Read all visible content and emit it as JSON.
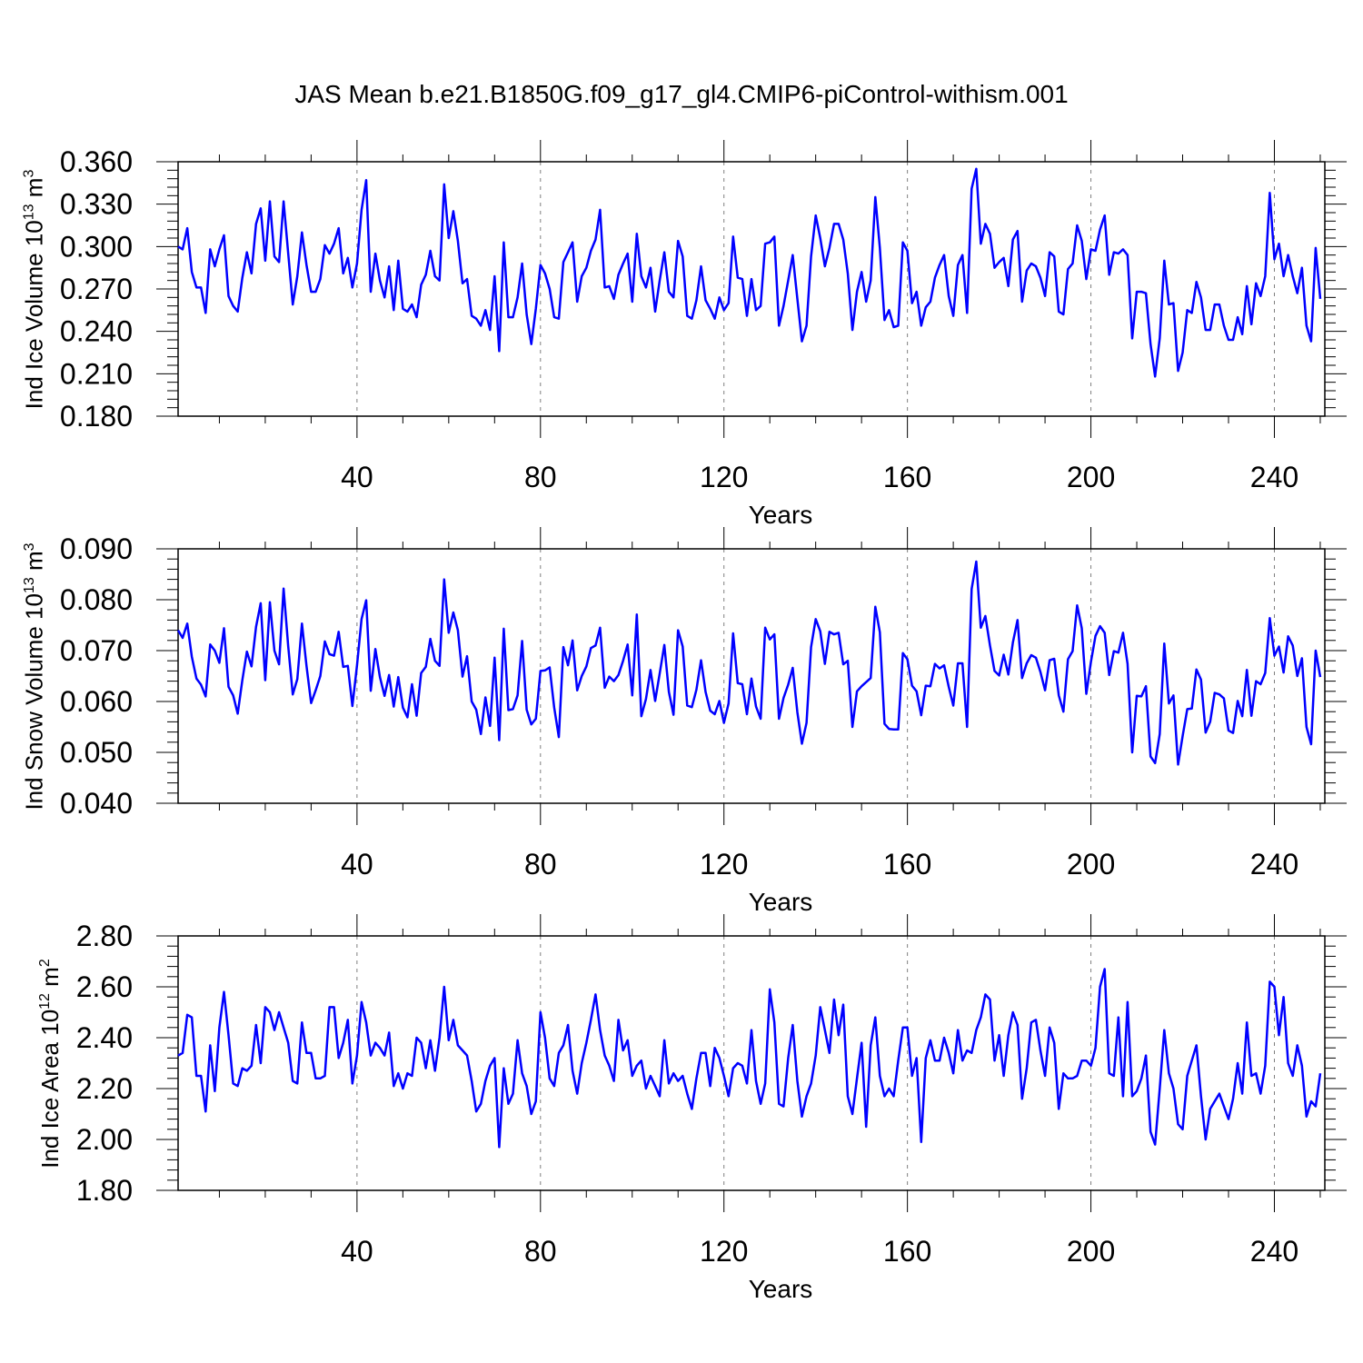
{
  "title": "JAS Mean b.e21.B1850G.f09_g17_gl4.CMIP6-piControl-withism.001",
  "colors": {
    "line": "#0000ff",
    "axis": "#000000",
    "grid": "#7f7f7f"
  },
  "chart_data": [
    {
      "type": "line",
      "ylabel": {
        "main": "Ind Ice Volume 10",
        "exp": "13",
        "unit": " m",
        "unit_exp": "3"
      },
      "xlabel": "Years",
      "xlim": [
        1,
        251
      ],
      "ylim": [
        0.18,
        0.36
      ],
      "xticks": [
        40,
        80,
        120,
        160,
        200,
        240
      ],
      "yticks": [
        0.18,
        0.21,
        0.24,
        0.27,
        0.3,
        0.33,
        0.36
      ],
      "ytick_labels": [
        "0.180",
        "0.210",
        "0.240",
        "0.270",
        "0.300",
        "0.330",
        "0.360"
      ],
      "grid": "dashed vertical at x ticks",
      "series": [
        {
          "x_start": 1,
          "values": [
            0.3,
            0.298,
            0.313,
            0.282,
            0.271,
            0.271,
            0.253,
            0.298,
            0.286,
            0.298,
            0.308,
            0.265,
            0.258,
            0.254,
            0.278,
            0.296,
            0.281,
            0.316,
            0.327,
            0.29,
            0.332,
            0.293,
            0.289,
            0.332,
            0.295,
            0.259,
            0.279,
            0.31,
            0.287,
            0.268,
            0.268,
            0.277,
            0.301,
            0.295,
            0.302,
            0.313,
            0.281,
            0.292,
            0.271,
            0.288,
            0.326,
            0.347,
            0.268,
            0.295,
            0.276,
            0.264,
            0.286,
            0.255,
            0.29,
            0.256,
            0.254,
            0.259,
            0.25,
            0.273,
            0.28,
            0.297,
            0.279,
            0.276,
            0.344,
            0.306,
            0.325,
            0.304,
            0.274,
            0.277,
            0.251,
            0.249,
            0.244,
            0.255,
            0.241,
            0.279,
            0.226,
            0.303,
            0.25,
            0.25,
            0.264,
            0.288,
            0.252,
            0.231,
            0.256,
            0.287,
            0.281,
            0.27,
            0.25,
            0.249,
            0.289,
            0.296,
            0.303,
            0.261,
            0.279,
            0.285,
            0.297,
            0.305,
            0.326,
            0.271,
            0.272,
            0.263,
            0.28,
            0.288,
            0.295,
            0.261,
            0.309,
            0.279,
            0.271,
            0.285,
            0.254,
            0.276,
            0.296,
            0.268,
            0.264,
            0.304,
            0.293,
            0.251,
            0.249,
            0.262,
            0.286,
            0.262,
            0.256,
            0.249,
            0.264,
            0.255,
            0.26,
            0.307,
            0.278,
            0.277,
            0.251,
            0.277,
            0.255,
            0.258,
            0.302,
            0.303,
            0.307,
            0.244,
            0.258,
            0.276,
            0.294,
            0.263,
            0.233,
            0.244,
            0.293,
            0.322,
            0.306,
            0.286,
            0.299,
            0.316,
            0.316,
            0.305,
            0.281,
            0.241,
            0.268,
            0.282,
            0.261,
            0.276,
            0.335,
            0.299,
            0.248,
            0.255,
            0.243,
            0.244,
            0.303,
            0.297,
            0.26,
            0.268,
            0.244,
            0.257,
            0.261,
            0.278,
            0.287,
            0.294,
            0.265,
            0.251,
            0.287,
            0.294,
            0.253,
            0.341,
            0.355,
            0.302,
            0.316,
            0.309,
            0.285,
            0.289,
            0.292,
            0.272,
            0.305,
            0.311,
            0.261,
            0.283,
            0.288,
            0.286,
            0.278,
            0.265,
            0.296,
            0.293,
            0.254,
            0.252,
            0.284,
            0.288,
            0.315,
            0.304,
            0.277,
            0.298,
            0.297,
            0.312,
            0.322,
            0.28,
            0.296,
            0.295,
            0.298,
            0.294,
            0.235,
            0.268,
            0.268,
            0.267,
            0.231,
            0.208,
            0.235,
            0.29,
            0.259,
            0.26,
            0.212,
            0.225,
            0.255,
            0.253,
            0.275,
            0.264,
            0.241,
            0.241,
            0.259,
            0.259,
            0.244,
            0.234,
            0.234,
            0.25,
            0.238,
            0.272,
            0.245,
            0.274,
            0.265,
            0.279,
            0.338,
            0.291,
            0.302,
            0.279,
            0.294,
            0.279,
            0.267,
            0.285,
            0.244,
            0.233,
            0.299,
            0.263
          ]
        }
      ]
    },
    {
      "type": "line",
      "ylabel": {
        "main": "Ind Snow Volume 10",
        "exp": "13",
        "unit": " m",
        "unit_exp": "3"
      },
      "xlabel": "Years",
      "xlim": [
        1,
        251
      ],
      "ylim": [
        0.04,
        0.09
      ],
      "xticks": [
        40,
        80,
        120,
        160,
        200,
        240
      ],
      "yticks": [
        0.04,
        0.05,
        0.06,
        0.07,
        0.08,
        0.09
      ],
      "ytick_labels": [
        "0.040",
        "0.050",
        "0.060",
        "0.070",
        "0.080",
        "0.090"
      ],
      "grid": "dashed vertical at x ticks",
      "series": [
        {
          "x_start": 1,
          "values": [
            0.074,
            0.0725,
            0.0753,
            0.0688,
            0.0645,
            0.0633,
            0.061,
            0.0712,
            0.07,
            0.0676,
            0.0744,
            0.0629,
            0.0612,
            0.0576,
            0.0642,
            0.0698,
            0.0669,
            0.0747,
            0.0793,
            0.0642,
            0.0795,
            0.07,
            0.0673,
            0.0822,
            0.0708,
            0.0614,
            0.0644,
            0.0753,
            0.067,
            0.0597,
            0.0622,
            0.065,
            0.0718,
            0.0693,
            0.069,
            0.0737,
            0.0668,
            0.067,
            0.0591,
            0.0671,
            0.0762,
            0.0799,
            0.0621,
            0.0703,
            0.0648,
            0.0611,
            0.0652,
            0.059,
            0.0648,
            0.0588,
            0.0569,
            0.0634,
            0.0572,
            0.0656,
            0.0668,
            0.0723,
            0.068,
            0.067,
            0.084,
            0.0735,
            0.0775,
            0.074,
            0.0649,
            0.0689,
            0.06,
            0.0584,
            0.0536,
            0.0608,
            0.0552,
            0.0686,
            0.0524,
            0.0743,
            0.0583,
            0.0585,
            0.0612,
            0.0719,
            0.0584,
            0.0555,
            0.0566,
            0.066,
            0.0661,
            0.0667,
            0.0588,
            0.053,
            0.0707,
            0.0671,
            0.072,
            0.0622,
            0.065,
            0.0669,
            0.0705,
            0.071,
            0.0745,
            0.0627,
            0.0649,
            0.064,
            0.0652,
            0.068,
            0.0712,
            0.0612,
            0.0771,
            0.0571,
            0.0605,
            0.0662,
            0.0601,
            0.0655,
            0.0711,
            0.0619,
            0.0574,
            0.074,
            0.0708,
            0.0592,
            0.0589,
            0.0623,
            0.0681,
            0.0619,
            0.0582,
            0.0575,
            0.0601,
            0.0558,
            0.0596,
            0.0734,
            0.0636,
            0.0634,
            0.0575,
            0.0645,
            0.059,
            0.0566,
            0.0745,
            0.0722,
            0.0732,
            0.0566,
            0.0607,
            0.0633,
            0.0666,
            0.0579,
            0.0517,
            0.0558,
            0.0707,
            0.0762,
            0.0738,
            0.0674,
            0.0737,
            0.0732,
            0.0735,
            0.0673,
            0.068,
            0.055,
            0.062,
            0.063,
            0.0638,
            0.0646,
            0.0786,
            0.0736,
            0.0556,
            0.0546,
            0.0545,
            0.0545,
            0.0695,
            0.0683,
            0.0631,
            0.062,
            0.0573,
            0.0631,
            0.063,
            0.0674,
            0.0665,
            0.0671,
            0.0629,
            0.0592,
            0.0675,
            0.0675,
            0.055,
            0.0821,
            0.0875,
            0.0745,
            0.0768,
            0.071,
            0.066,
            0.0651,
            0.0692,
            0.0653,
            0.0716,
            0.076,
            0.0646,
            0.0675,
            0.0691,
            0.0686,
            0.0658,
            0.0622,
            0.0681,
            0.0684,
            0.0612,
            0.058,
            0.0683,
            0.0699,
            0.0789,
            0.0744,
            0.0615,
            0.0678,
            0.0729,
            0.0748,
            0.0735,
            0.0652,
            0.0699,
            0.0696,
            0.0735,
            0.0674,
            0.05,
            0.0611,
            0.061,
            0.063,
            0.0492,
            0.0479,
            0.0536,
            0.0714,
            0.0596,
            0.0612,
            0.0476,
            0.0532,
            0.0585,
            0.0586,
            0.0663,
            0.0643,
            0.0539,
            0.056,
            0.0617,
            0.0614,
            0.0606,
            0.0543,
            0.0538,
            0.0601,
            0.0571,
            0.0662,
            0.0572,
            0.064,
            0.0634,
            0.0656,
            0.0764,
            0.069,
            0.0708,
            0.0657,
            0.0728,
            0.071,
            0.065,
            0.0685,
            0.055,
            0.0516,
            0.07,
            0.0648
          ]
        }
      ]
    },
    {
      "type": "line",
      "ylabel": {
        "main": "Ind Ice Area 10",
        "exp": "12",
        "unit": " m",
        "unit_exp": "2"
      },
      "xlabel": "Years",
      "xlim": [
        1,
        251
      ],
      "ylim": [
        1.8,
        2.8
      ],
      "xticks": [
        40,
        80,
        120,
        160,
        200,
        240
      ],
      "yticks": [
        1.8,
        2.0,
        2.2,
        2.4,
        2.6,
        2.8
      ],
      "ytick_labels": [
        "1.80",
        "2.00",
        "2.20",
        "2.40",
        "2.60",
        "2.80"
      ],
      "grid": "dashed vertical at x ticks",
      "series": [
        {
          "x_start": 1,
          "values": [
            2.33,
            2.34,
            2.49,
            2.48,
            2.25,
            2.25,
            2.11,
            2.37,
            2.19,
            2.44,
            2.58,
            2.41,
            2.22,
            2.21,
            2.28,
            2.27,
            2.29,
            2.45,
            2.3,
            2.52,
            2.5,
            2.43,
            2.5,
            2.44,
            2.38,
            2.23,
            2.22,
            2.46,
            2.34,
            2.34,
            2.24,
            2.24,
            2.25,
            2.52,
            2.52,
            2.32,
            2.38,
            2.47,
            2.22,
            2.33,
            2.54,
            2.46,
            2.33,
            2.38,
            2.36,
            2.33,
            2.42,
            2.21,
            2.26,
            2.2,
            2.26,
            2.25,
            2.4,
            2.38,
            2.28,
            2.39,
            2.27,
            2.4,
            2.6,
            2.39,
            2.47,
            2.37,
            2.35,
            2.33,
            2.23,
            2.11,
            2.14,
            2.23,
            2.29,
            2.32,
            1.97,
            2.28,
            2.14,
            2.18,
            2.39,
            2.26,
            2.21,
            2.1,
            2.15,
            2.5,
            2.4,
            2.24,
            2.21,
            2.34,
            2.37,
            2.45,
            2.27,
            2.18,
            2.3,
            2.38,
            2.47,
            2.57,
            2.43,
            2.33,
            2.29,
            2.23,
            2.47,
            2.35,
            2.39,
            2.25,
            2.29,
            2.31,
            2.2,
            2.25,
            2.21,
            2.17,
            2.39,
            2.22,
            2.26,
            2.23,
            2.25,
            2.18,
            2.12,
            2.24,
            2.34,
            2.34,
            2.21,
            2.36,
            2.32,
            2.25,
            2.17,
            2.28,
            2.3,
            2.29,
            2.22,
            2.43,
            2.23,
            2.14,
            2.22,
            2.59,
            2.46,
            2.14,
            2.13,
            2.32,
            2.45,
            2.23,
            2.09,
            2.17,
            2.22,
            2.33,
            2.52,
            2.43,
            2.34,
            2.55,
            2.41,
            2.53,
            2.17,
            2.1,
            2.24,
            2.38,
            2.05,
            2.37,
            2.48,
            2.25,
            2.17,
            2.2,
            2.17,
            2.31,
            2.44,
            2.44,
            2.25,
            2.32,
            1.99,
            2.32,
            2.39,
            2.31,
            2.31,
            2.4,
            2.34,
            2.26,
            2.43,
            2.31,
            2.35,
            2.34,
            2.43,
            2.48,
            2.57,
            2.55,
            2.31,
            2.41,
            2.25,
            2.41,
            2.5,
            2.45,
            2.16,
            2.28,
            2.46,
            2.47,
            2.35,
            2.25,
            2.44,
            2.38,
            2.12,
            2.26,
            2.24,
            2.24,
            2.25,
            2.31,
            2.31,
            2.29,
            2.36,
            2.6,
            2.67,
            2.26,
            2.25,
            2.48,
            2.17,
            2.54,
            2.17,
            2.19,
            2.24,
            2.33,
            2.03,
            1.98,
            2.2,
            2.43,
            2.26,
            2.2,
            2.06,
            2.04,
            2.25,
            2.31,
            2.37,
            2.17,
            2.0,
            2.12,
            2.15,
            2.18,
            2.13,
            2.08,
            2.16,
            2.3,
            2.18,
            2.46,
            2.25,
            2.26,
            2.18,
            2.29,
            2.62,
            2.6,
            2.41,
            2.56,
            2.3,
            2.25,
            2.37,
            2.29,
            2.09,
            2.15,
            2.13,
            2.26
          ]
        }
      ]
    }
  ]
}
